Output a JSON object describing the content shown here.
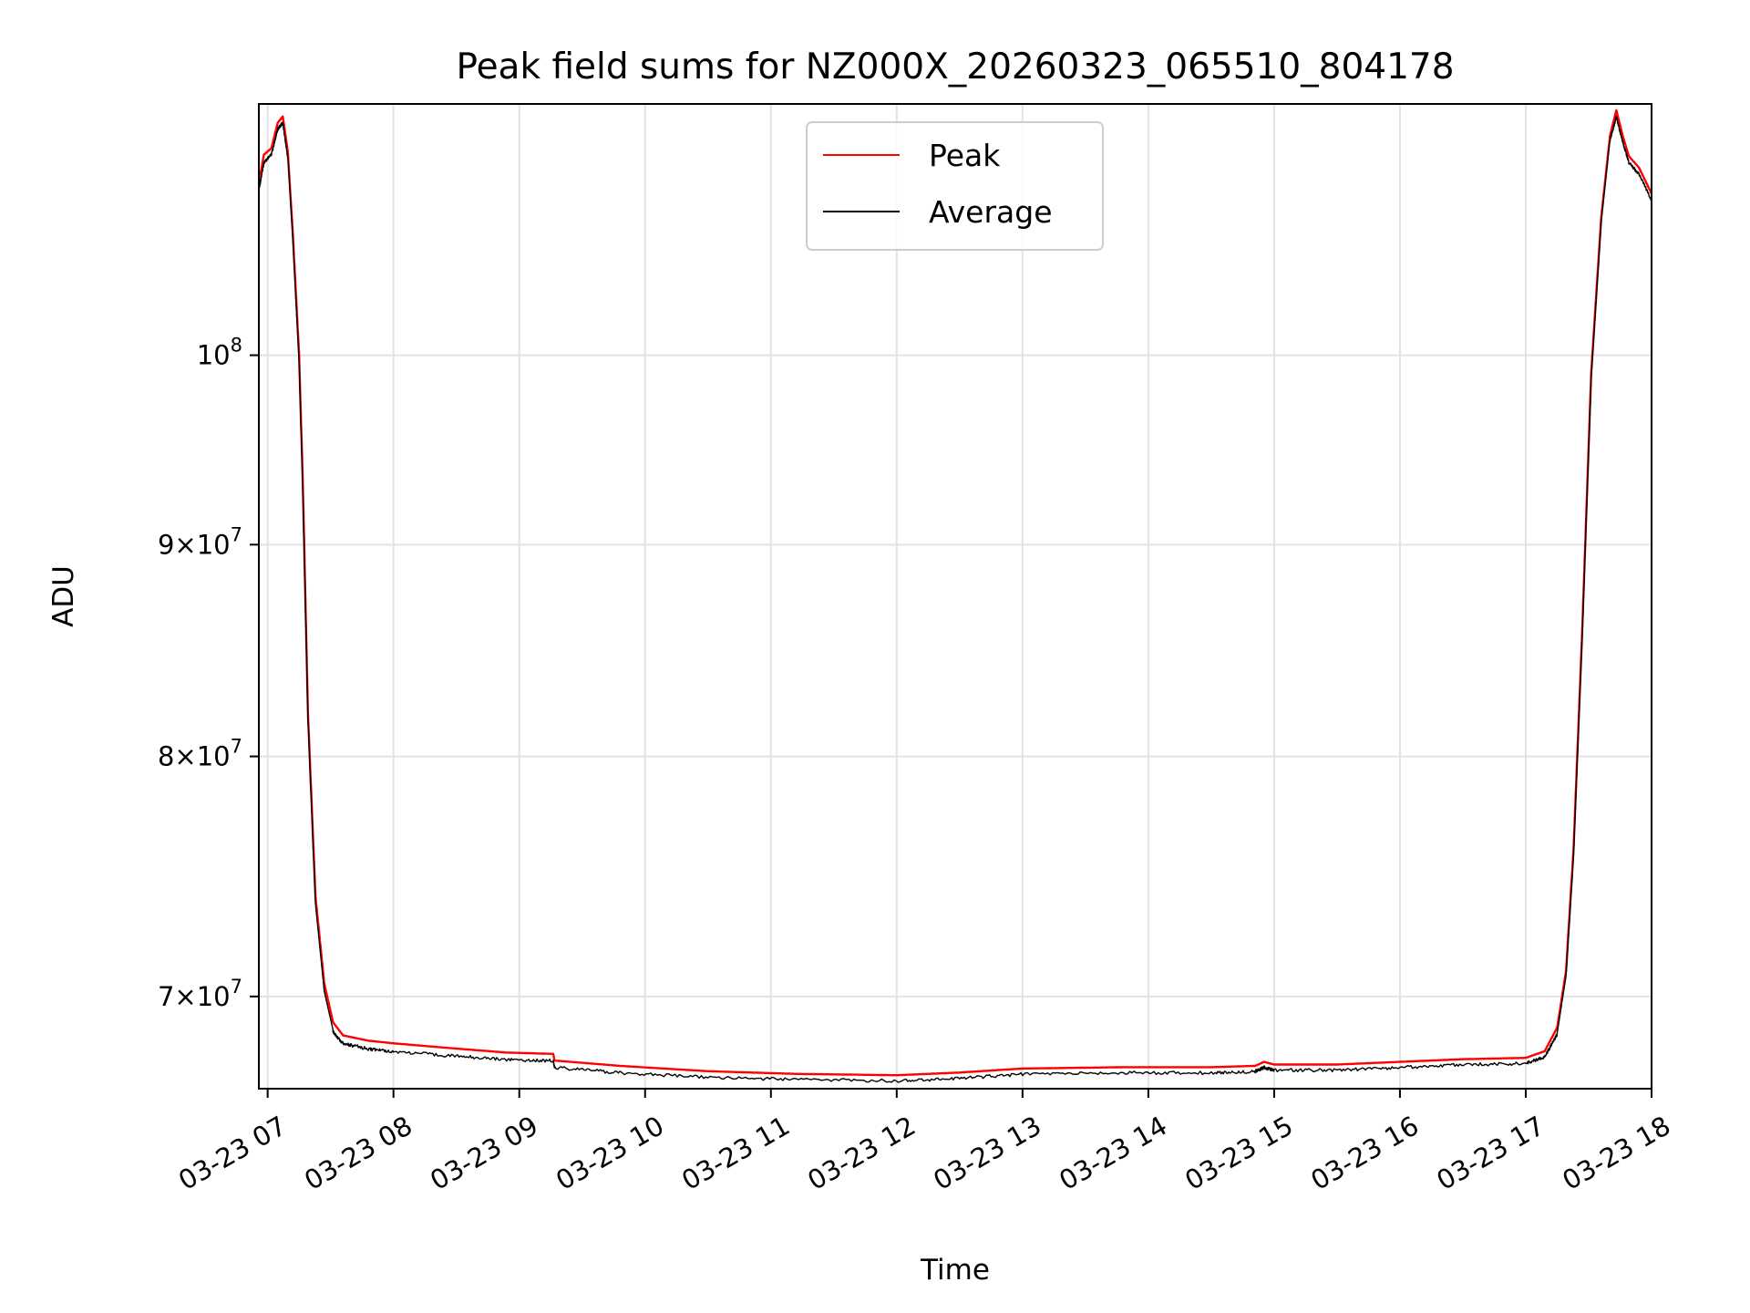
{
  "chart_data": {
    "type": "line",
    "title": "Peak field sums for NZ000X_20260323_065510_804178",
    "xlabel": "Time",
    "ylabel": "ADU",
    "yscale": "log",
    "ylim": [
      66500000,
      115000000
    ],
    "xlim_hours": [
      6.93,
      18.0
    ],
    "x_ticks": [
      {
        "hour": 7,
        "label": "03-23 07"
      },
      {
        "hour": 8,
        "label": "03-23 08"
      },
      {
        "hour": 9,
        "label": "03-23 09"
      },
      {
        "hour": 10,
        "label": "03-23 10"
      },
      {
        "hour": 11,
        "label": "03-23 11"
      },
      {
        "hour": 12,
        "label": "03-23 12"
      },
      {
        "hour": 13,
        "label": "03-23 13"
      },
      {
        "hour": 14,
        "label": "03-23 14"
      },
      {
        "hour": 15,
        "label": "03-23 15"
      },
      {
        "hour": 16,
        "label": "03-23 16"
      },
      {
        "hour": 17,
        "label": "03-23 17"
      },
      {
        "hour": 18,
        "label": "03-23 18"
      }
    ],
    "y_ticks": [
      {
        "value": 100000000,
        "base": "10",
        "exp": "8",
        "mant": ""
      },
      {
        "value": 90000000,
        "base": "10",
        "exp": "7",
        "mant": "9×"
      },
      {
        "value": 80000000,
        "base": "10",
        "exp": "7",
        "mant": "8×"
      },
      {
        "value": 70000000,
        "base": "10",
        "exp": "7",
        "mant": "7×"
      }
    ],
    "grid": true,
    "legend_position": "top-center",
    "series": [
      {
        "name": "Peak",
        "color": "#ff0000",
        "points": [
          [
            6.93,
            110000000
          ],
          [
            6.97,
            111800000
          ],
          [
            7.03,
            112200000
          ],
          [
            7.08,
            113800000
          ],
          [
            7.12,
            114200000
          ],
          [
            7.16,
            112000000
          ],
          [
            7.2,
            107000000
          ],
          [
            7.25,
            100000000
          ],
          [
            7.28,
            93000000
          ],
          [
            7.32,
            82000000
          ],
          [
            7.38,
            74000000
          ],
          [
            7.45,
            70500000
          ],
          [
            7.52,
            69000000
          ],
          [
            7.6,
            68500000
          ],
          [
            7.8,
            68300000
          ],
          [
            8.0,
            68200000
          ],
          [
            8.5,
            68000000
          ],
          [
            8.9,
            67850000
          ],
          [
            9.27,
            67800000
          ],
          [
            9.28,
            67550000
          ],
          [
            9.8,
            67350000
          ],
          [
            10.5,
            67150000
          ],
          [
            11.2,
            67050000
          ],
          [
            12.0,
            67000000
          ],
          [
            12.5,
            67100000
          ],
          [
            13.0,
            67250000
          ],
          [
            13.8,
            67300000
          ],
          [
            14.5,
            67300000
          ],
          [
            14.85,
            67350000
          ],
          [
            14.92,
            67500000
          ],
          [
            15.0,
            67400000
          ],
          [
            15.5,
            67400000
          ],
          [
            16.0,
            67500000
          ],
          [
            16.5,
            67600000
          ],
          [
            17.0,
            67650000
          ],
          [
            17.15,
            67900000
          ],
          [
            17.25,
            68800000
          ],
          [
            17.32,
            71000000
          ],
          [
            17.38,
            76000000
          ],
          [
            17.45,
            86000000
          ],
          [
            17.52,
            99000000
          ],
          [
            17.6,
            108000000
          ],
          [
            17.67,
            113000000
          ],
          [
            17.72,
            114600000
          ],
          [
            17.77,
            113000000
          ],
          [
            17.82,
            111700000
          ],
          [
            17.9,
            111000000
          ],
          [
            18.0,
            109400000
          ]
        ]
      },
      {
        "name": "Average",
        "color": "#000000",
        "points": [
          [
            6.93,
            109700000
          ],
          [
            6.97,
            111400000
          ],
          [
            7.03,
            111900000
          ],
          [
            7.08,
            113500000
          ],
          [
            7.12,
            113900000
          ],
          [
            7.16,
            111700000
          ],
          [
            7.2,
            106700000
          ],
          [
            7.25,
            99600000
          ],
          [
            7.28,
            92600000
          ],
          [
            7.32,
            81700000
          ],
          [
            7.38,
            73700000
          ],
          [
            7.45,
            70200000
          ],
          [
            7.52,
            68700000
          ],
          [
            7.6,
            68250000
          ],
          [
            7.8,
            68050000
          ],
          [
            8.0,
            67950000
          ],
          [
            8.5,
            67780000
          ],
          [
            8.9,
            67650000
          ],
          [
            9.27,
            67600000
          ],
          [
            9.28,
            67350000
          ],
          [
            9.8,
            67150000
          ],
          [
            10.5,
            66980000
          ],
          [
            11.2,
            66900000
          ],
          [
            12.0,
            66850000
          ],
          [
            12.5,
            66950000
          ],
          [
            13.0,
            67100000
          ],
          [
            13.8,
            67150000
          ],
          [
            14.5,
            67150000
          ],
          [
            14.85,
            67200000
          ],
          [
            14.92,
            67350000
          ],
          [
            15.0,
            67250000
          ],
          [
            15.5,
            67250000
          ],
          [
            16.0,
            67350000
          ],
          [
            16.5,
            67450000
          ],
          [
            17.0,
            67500000
          ],
          [
            17.15,
            67750000
          ],
          [
            17.25,
            68600000
          ],
          [
            17.32,
            70800000
          ],
          [
            17.38,
            75700000
          ],
          [
            17.45,
            85700000
          ],
          [
            17.52,
            98700000
          ],
          [
            17.6,
            107700000
          ],
          [
            17.67,
            112800000
          ],
          [
            17.72,
            114300000
          ],
          [
            17.77,
            112700000
          ],
          [
            17.82,
            111400000
          ],
          [
            17.9,
            110700000
          ],
          [
            18.0,
            109100000
          ]
        ]
      }
    ]
  }
}
